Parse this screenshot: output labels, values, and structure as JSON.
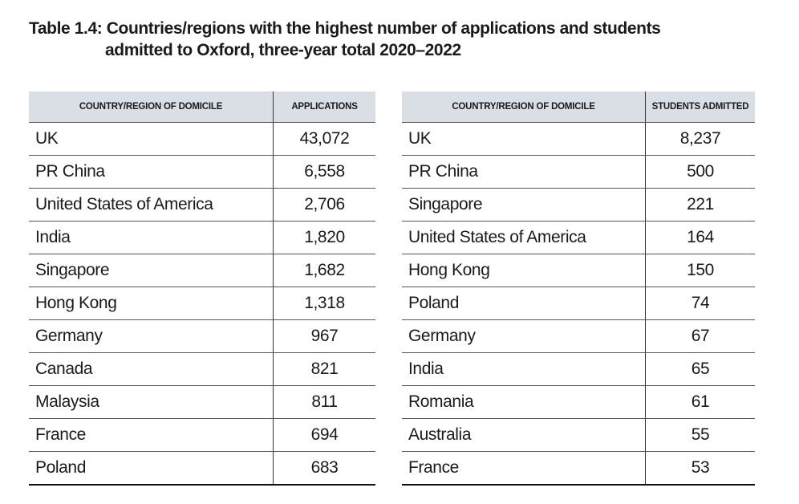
{
  "title": {
    "line1": "Table 1.4: Countries/regions with the highest number of applications and students",
    "line2": "admitted to Oxford, three-year total 2020–2022"
  },
  "applications_table": {
    "headers": [
      "COUNTRY/REGION OF DOMICILE",
      "APPLICATIONS"
    ],
    "rows": [
      [
        "UK",
        "43,072"
      ],
      [
        "PR China",
        "6,558"
      ],
      [
        "United States of America",
        "2,706"
      ],
      [
        "India",
        "1,820"
      ],
      [
        "Singapore",
        "1,682"
      ],
      [
        "Hong Kong",
        "1,318"
      ],
      [
        "Germany",
        "967"
      ],
      [
        "Canada",
        "821"
      ],
      [
        "Malaysia",
        "811"
      ],
      [
        "France",
        "694"
      ],
      [
        "Poland",
        "683"
      ]
    ]
  },
  "admitted_table": {
    "headers": [
      "COUNTRY/REGION OF DOMICILE",
      "STUDENTS ADMITTED"
    ],
    "rows": [
      [
        "UK",
        "8,237"
      ],
      [
        "PR China",
        "500"
      ],
      [
        "Singapore",
        "221"
      ],
      [
        "United States of America",
        "164"
      ],
      [
        "Hong Kong",
        "150"
      ],
      [
        "Poland",
        "74"
      ],
      [
        "Germany",
        "67"
      ],
      [
        "India",
        "65"
      ],
      [
        "Romania",
        "61"
      ],
      [
        "Australia",
        "55"
      ],
      [
        "France",
        "53"
      ]
    ]
  },
  "colors": {
    "header_background": "#d9dfe5",
    "text": "#1a1a1a"
  }
}
